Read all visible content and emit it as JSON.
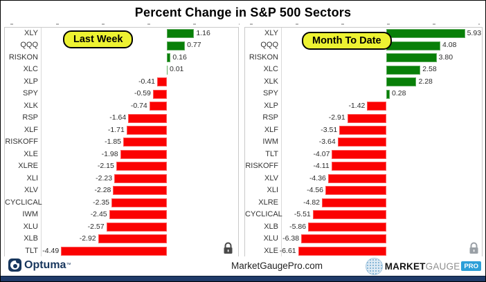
{
  "title": "Percent Change in S&P 500 Sectors",
  "colors": {
    "positive": "#087f08",
    "negative": "#fb0202",
    "badge_bg": "#edf232",
    "footer_bar": "#1f3a68",
    "brand_pro_bg": "#2d9fd8",
    "optuma_navy": "#17365d"
  },
  "chart_data": [
    {
      "type": "bar",
      "orientation": "horizontal",
      "title": "Last Week",
      "categories": [
        "XLY",
        "QQQ",
        "RISKON",
        "XLC",
        "XLP",
        "SPY",
        "XLK",
        "RSP",
        "XLF",
        "RISKOFF",
        "XLE",
        "XLRE",
        "XLI",
        "XLV",
        "CYCLICAL",
        "IWM",
        "XLU",
        "XLB",
        "TLT"
      ],
      "values": [
        1.16,
        0.77,
        0.16,
        0.01,
        -0.41,
        -0.59,
        -0.74,
        -1.64,
        -1.71,
        -1.85,
        -1.98,
        -2.15,
        -2.23,
        -2.28,
        -2.35,
        -2.45,
        -2.57,
        -2.92,
        -4.49
      ],
      "xlim": [
        -5.32,
        3.03
      ],
      "value_label_format": "0.00",
      "grid": false,
      "legend": "none"
    },
    {
      "type": "bar",
      "orientation": "horizontal",
      "title": "Month To Date",
      "categories": [
        "XLY",
        "QQQ",
        "RISKON",
        "XLC",
        "XLK",
        "SPY",
        "XLP",
        "RSP",
        "XLF",
        "IWM",
        "TLT",
        "RISKOFF",
        "XLV",
        "XLI",
        "XLRE",
        "CYCLICAL",
        "XLB",
        "XLU",
        "XLE"
      ],
      "values": [
        5.93,
        4.08,
        3.8,
        2.58,
        2.28,
        0.28,
        -1.42,
        -2.91,
        -3.51,
        -3.64,
        -4.07,
        -4.11,
        -4.36,
        -4.56,
        -4.82,
        -5.51,
        -5.86,
        -6.38,
        -6.61
      ],
      "xlim": [
        -7.84,
        7.2
      ],
      "value_label_format": "0.00",
      "grid": false,
      "legend": "none"
    }
  ],
  "footer": {
    "optuma_label": "Optuma",
    "optuma_tm": "™",
    "website": "MarketGaugePro.com",
    "brand": {
      "market": "MARKET",
      "gauge": "GAUGE",
      "pro": "PRO"
    }
  }
}
